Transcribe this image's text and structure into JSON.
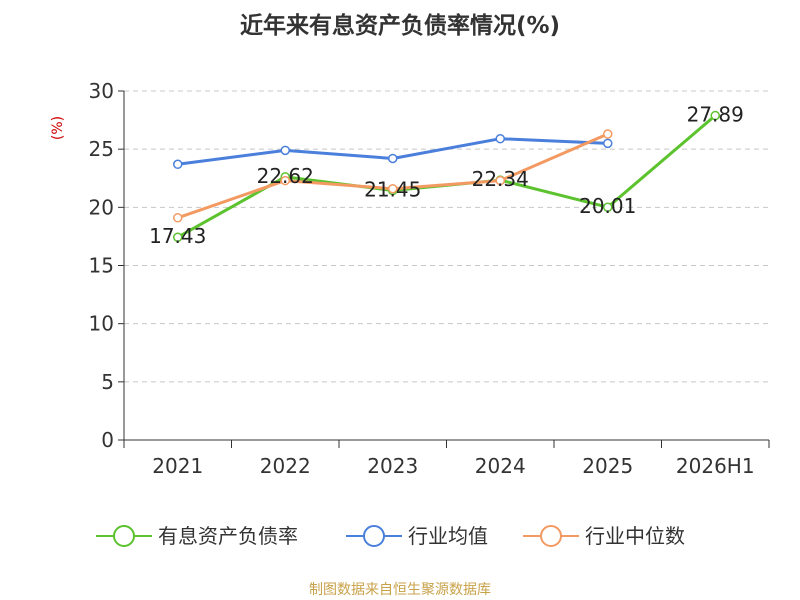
{
  "title": "近年来有息资产负债率情况(%)",
  "y_unit": "(%)",
  "footer": "制图数据来自恒生聚源数据库",
  "chart_data": {
    "type": "line",
    "categories": [
      "2021",
      "2022",
      "2023",
      "2024",
      "2025",
      "2026H1"
    ],
    "ylim": [
      0,
      30
    ],
    "yticks": [
      0,
      5,
      10,
      15,
      20,
      25,
      30
    ],
    "grid": true,
    "legend_position": "bottom",
    "series": [
      {
        "name": "有息资产负债率",
        "color": "#5cc32e",
        "values": [
          17.43,
          22.62,
          21.45,
          22.34,
          20.01,
          27.89
        ],
        "labels": [
          "17.43",
          "22.62",
          "21.45",
          "22.34",
          "20.01",
          "27.89"
        ]
      },
      {
        "name": "行业均值",
        "color": "#4a7fdb",
        "values": [
          23.7,
          24.9,
          24.2,
          25.9,
          25.5,
          null
        ]
      },
      {
        "name": "行业中位数",
        "color": "#f39a62",
        "values": [
          19.1,
          22.3,
          21.6,
          22.3,
          26.3,
          null
        ]
      }
    ]
  }
}
